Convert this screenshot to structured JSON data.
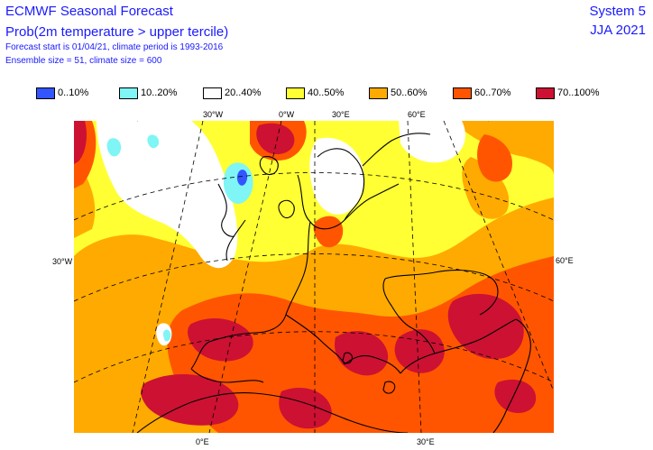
{
  "header": {
    "title": "ECMWF Seasonal Forecast",
    "subtitle": "Prob(2m temperature > upper tercile)",
    "line1": "Forecast start is 01/04/21, climate period is 1993-2016",
    "line2": "Ensemble size = 51, climate size = 600",
    "system": "System 5",
    "period": "JJA 2021"
  },
  "legend": [
    {
      "label": "0..10%",
      "color": "#3355ff"
    },
    {
      "label": "10..20%",
      "color": "#7ff5f5"
    },
    {
      "label": "20..40%",
      "color": "#ffffff"
    },
    {
      "label": "40..50%",
      "color": "#ffff33"
    },
    {
      "label": "50..60%",
      "color": "#ffaa00"
    },
    {
      "label": "60..70%",
      "color": "#ff5500"
    },
    {
      "label": "70..100%",
      "color": "#cc1133"
    }
  ],
  "gridlabels": {
    "top": [
      "30°W",
      "0°W",
      "30°E",
      "60°E"
    ],
    "left": "30°W",
    "right": "60°E",
    "bottom": [
      "0°E",
      "30°E"
    ]
  }
}
